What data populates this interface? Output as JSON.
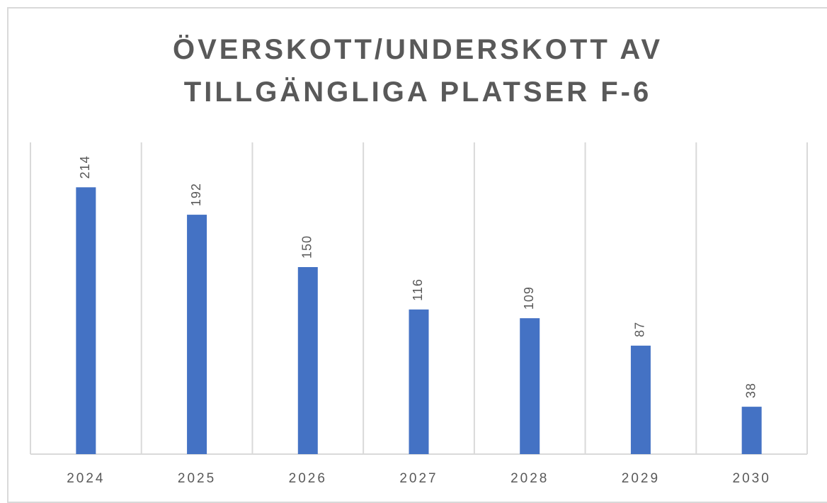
{
  "chart_data": {
    "type": "bar",
    "title": "ÖVERSKOTT/UNDERSKOTT AV TILLGÄNGLIGA PLATSER F-6",
    "categories": [
      "2024",
      "2025",
      "2026",
      "2027",
      "2028",
      "2029",
      "2030"
    ],
    "values": [
      214,
      192,
      150,
      116,
      109,
      87,
      38
    ],
    "color": "#4472c4",
    "ylim": [
      0,
      250
    ]
  }
}
